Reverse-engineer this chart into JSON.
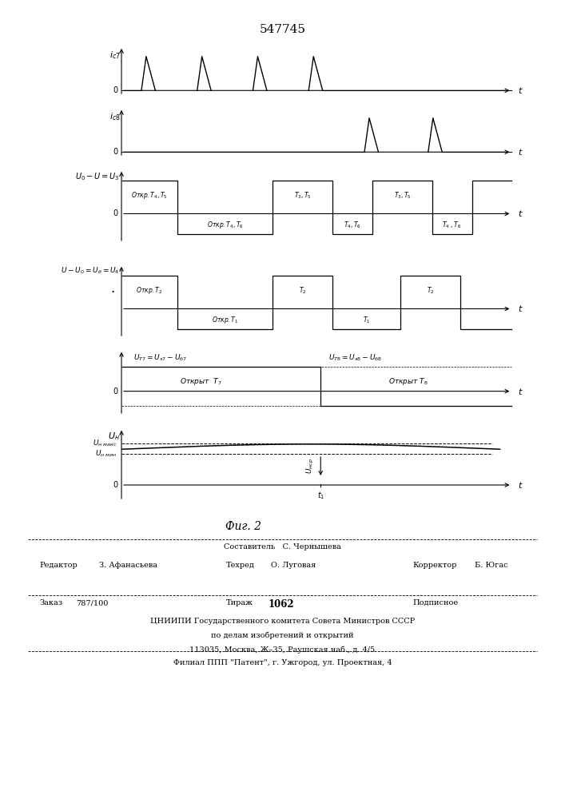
{
  "title": "547745",
  "fig_caption": "Фиг. 2",
  "background_color": "#ffffff",
  "line_color": "#000000",
  "footer": {
    "sestavitel": "Составитель   С. Чернышева",
    "redaktor_label": "Редактор",
    "redaktor_val": "З. Афанасьева",
    "tehred_label": "Техред",
    "tehred_val": "О. Луговая",
    "korrektor_label": "Корректор",
    "korrektor_val": "Б. Югас",
    "zakaz_label": "Заказ",
    "zakaz_val": "787/100",
    "tirazh_label": "Тираж",
    "tirazh_val": "1062",
    "podpisnoe": "Подписное",
    "tsniipи": "ЦНИИПИ Государственного комитета Совета Министров СССР",
    "po_delam": "по делам изобретений и открытий",
    "address": "113035, Москва, Ж–35, Раушская наб., д. 4/5",
    "filial": "Филиал ППП \"Патент\", г. Ужгород, ул. Проектная, 4"
  }
}
